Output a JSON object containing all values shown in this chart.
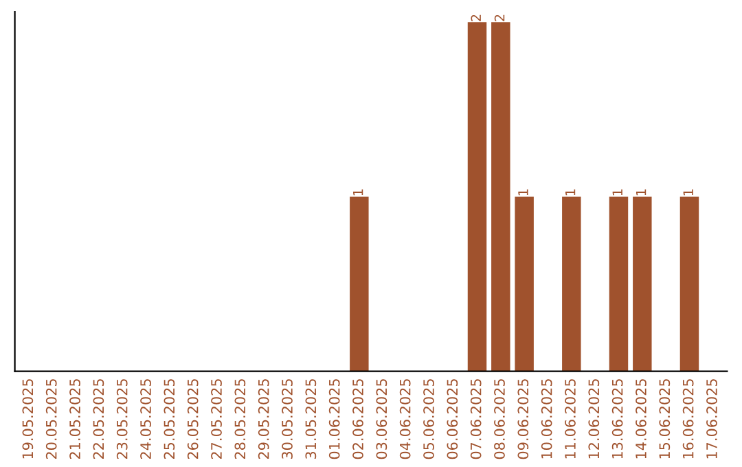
{
  "chart_data": {
    "type": "bar",
    "categories": [
      "19.05.2025",
      "20.05.2025",
      "21.05.2025",
      "22.05.2025",
      "23.05.2025",
      "24.05.2025",
      "25.05.2025",
      "26.05.2025",
      "27.05.2025",
      "28.05.2025",
      "29.05.2025",
      "30.05.2025",
      "31.05.2025",
      "01.06.2025",
      "02.06.2025",
      "03.06.2025",
      "04.06.2025",
      "05.06.2025",
      "06.06.2025",
      "07.06.2025",
      "08.06.2025",
      "09.06.2025",
      "10.06.2025",
      "11.06.2025",
      "12.06.2025",
      "13.06.2025",
      "14.06.2025",
      "15.06.2025",
      "16.06.2025",
      "17.06.2025"
    ],
    "values": [
      null,
      null,
      null,
      null,
      null,
      null,
      null,
      null,
      null,
      null,
      null,
      null,
      null,
      null,
      1,
      null,
      null,
      null,
      null,
      2,
      2,
      1,
      null,
      1,
      null,
      1,
      1,
      null,
      1,
      null
    ],
    "data_labels": true,
    "color": "#a0522d",
    "tick_labels": "x",
    "grid": false,
    "legend": false
  }
}
